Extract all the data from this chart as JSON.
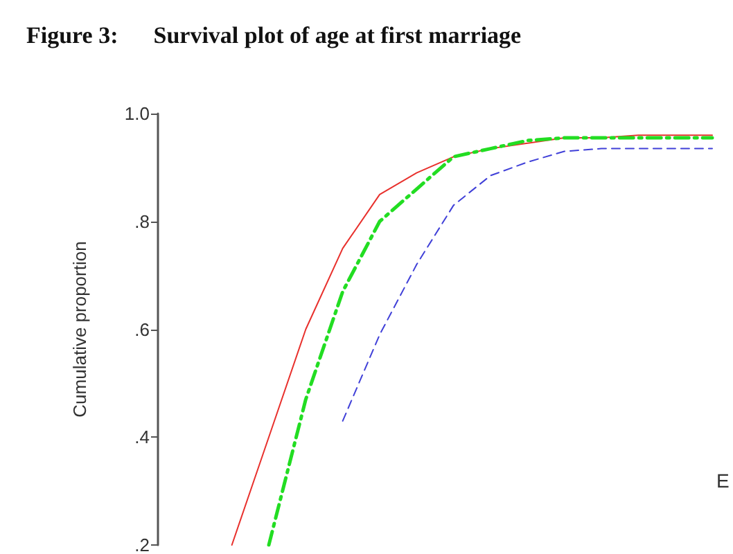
{
  "chart_data": {
    "type": "line",
    "title": "Figure 3:      Survival plot of age at first marriage",
    "ylabel": "Cumulative proportion",
    "legend_title": "E",
    "categories": [
      null,
      null,
      null,
      null,
      null,
      null,
      null,
      null,
      null,
      null,
      null,
      null,
      null,
      null,
      null,
      null
    ],
    "series": [
      {
        "color": "#e8302c",
        "line_style": "solid",
        "values": [
          null,
          null,
          0.2,
          0.4,
          0.6,
          0.75,
          0.85,
          0.89,
          0.92,
          0.935,
          0.945,
          0.955,
          0.955,
          0.96,
          0.96,
          0.96
        ]
      },
      {
        "color": "#22dd22",
        "line_style": "dashdot",
        "values": [
          null,
          null,
          null,
          0.2,
          0.47,
          0.67,
          0.8,
          0.86,
          0.92,
          0.935,
          0.95,
          0.955,
          0.955,
          0.955,
          0.955,
          0.955
        ]
      },
      {
        "color": "#4040d8",
        "line_style": "dashed",
        "values": [
          null,
          null,
          null,
          null,
          null,
          0.43,
          0.59,
          0.72,
          0.83,
          0.885,
          0.91,
          0.93,
          0.935,
          0.935,
          0.935,
          0.935
        ]
      }
    ],
    "ylim": [
      0.2,
      1.0
    ],
    "yticks": [
      {
        "value": 0.2,
        "label": ".2"
      },
      {
        "value": 0.4,
        "label": ".4"
      },
      {
        "value": 0.6,
        "label": ".6"
      },
      {
        "value": 0.8,
        "label": ".8"
      },
      {
        "value": 1.0,
        "label": "1.0"
      }
    ],
    "tick_labels": "y",
    "grid": false,
    "marker": "none"
  }
}
